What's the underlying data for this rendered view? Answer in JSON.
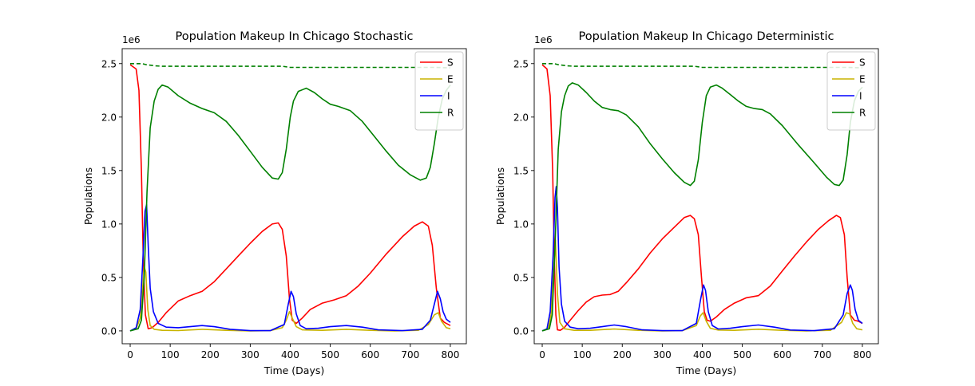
{
  "chart_data": [
    {
      "type": "line",
      "title": "Population Makeup In Chicago Stochastic",
      "xlabel": "Time (Days)",
      "ylabel": "Populations",
      "scale_label": "1e6",
      "xlim": [
        -20,
        840
      ],
      "ylim": [
        -120000,
        2640000
      ],
      "xticks": [
        0,
        100,
        200,
        300,
        400,
        500,
        600,
        700,
        800
      ],
      "yticks": [
        0,
        500000,
        1000000,
        1500000,
        2000000,
        2500000
      ],
      "ytick_labels": [
        "0.0",
        "0.5",
        "1.0",
        "1.5",
        "2.0",
        "2.5"
      ],
      "legend": "top-right",
      "series": [
        {
          "name": "S",
          "color": "#ff0000",
          "dashed": false,
          "x": [
            0,
            15,
            22,
            28,
            33,
            38,
            45,
            55,
            70,
            90,
            120,
            150,
            180,
            210,
            240,
            270,
            300,
            330,
            355,
            370,
            380,
            390,
            398,
            405,
            415,
            430,
            450,
            480,
            510,
            540,
            570,
            600,
            640,
            680,
            710,
            730,
            745,
            755,
            765,
            775,
            785,
            800
          ],
          "y": [
            2490000,
            2450000,
            2250000,
            1500000,
            600000,
            150000,
            20000,
            30000,
            80000,
            170000,
            280000,
            330000,
            370000,
            460000,
            580000,
            700000,
            820000,
            930000,
            1000000,
            1010000,
            950000,
            700000,
            300000,
            100000,
            70000,
            120000,
            200000,
            260000,
            290000,
            330000,
            420000,
            540000,
            720000,
            880000,
            980000,
            1020000,
            980000,
            800000,
            400000,
            120000,
            80000,
            50000
          ]
        },
        {
          "name": "E",
          "color": "#c8b400",
          "dashed": false,
          "x": [
            0,
            15,
            25,
            30,
            35,
            39,
            44,
            50,
            60,
            80,
            120,
            180,
            240,
            300,
            350,
            380,
            390,
            398,
            405,
            415,
            430,
            480,
            540,
            600,
            660,
            720,
            745,
            760,
            770,
            778,
            790,
            800
          ],
          "y": [
            0,
            20000,
            120000,
            350000,
            600000,
            550000,
            200000,
            50000,
            15000,
            5000,
            3000,
            15000,
            5000,
            0,
            2000,
            30000,
            100000,
            180000,
            120000,
            40000,
            10000,
            5000,
            15000,
            5000,
            0,
            5000,
            60000,
            150000,
            170000,
            90000,
            30000,
            20000
          ]
        },
        {
          "name": "I",
          "color": "#0000ff",
          "dashed": false,
          "x": [
            0,
            15,
            25,
            32,
            37,
            41,
            45,
            50,
            58,
            70,
            90,
            120,
            150,
            180,
            210,
            250,
            300,
            350,
            385,
            395,
            402,
            408,
            415,
            425,
            440,
            470,
            500,
            540,
            580,
            620,
            680,
            730,
            750,
            760,
            768,
            775,
            782,
            790,
            800
          ],
          "y": [
            0,
            30000,
            200000,
            700000,
            1120000,
            1180000,
            800000,
            400000,
            180000,
            70000,
            35000,
            30000,
            40000,
            50000,
            40000,
            15000,
            2000,
            2000,
            60000,
            250000,
            370000,
            320000,
            160000,
            50000,
            20000,
            25000,
            40000,
            50000,
            35000,
            10000,
            2000,
            15000,
            100000,
            250000,
            370000,
            300000,
            180000,
            110000,
            80000
          ]
        },
        {
          "name": "R",
          "color": "#008000",
          "dashed": false,
          "x": [
            0,
            20,
            28,
            35,
            42,
            50,
            60,
            70,
            80,
            95,
            120,
            150,
            180,
            210,
            240,
            270,
            300,
            330,
            355,
            370,
            380,
            390,
            400,
            408,
            420,
            440,
            460,
            480,
            500,
            520,
            550,
            580,
            610,
            640,
            670,
            700,
            725,
            740,
            750,
            760,
            770,
            780,
            790,
            800
          ],
          "y": [
            0,
            20000,
            100000,
            500000,
            1300000,
            1900000,
            2150000,
            2260000,
            2300000,
            2280000,
            2200000,
            2130000,
            2080000,
            2040000,
            1960000,
            1830000,
            1680000,
            1530000,
            1430000,
            1420000,
            1480000,
            1700000,
            2000000,
            2150000,
            2240000,
            2270000,
            2230000,
            2170000,
            2120000,
            2100000,
            2060000,
            1960000,
            1820000,
            1680000,
            1550000,
            1460000,
            1410000,
            1430000,
            1530000,
            1750000,
            2000000,
            2170000,
            2250000,
            2300000
          ]
        },
        {
          "name": "",
          "color": "#008000",
          "dashed": true,
          "x": [
            0,
            30,
            40,
            60,
            80,
            200,
            300,
            380,
            400,
            600,
            760,
            800
          ],
          "y": [
            2500000,
            2500000,
            2490000,
            2480000,
            2475000,
            2475000,
            2475000,
            2475000,
            2465000,
            2465000,
            2465000,
            2460000
          ]
        }
      ]
    },
    {
      "type": "line",
      "title": "Population Makeup In Chicago Deterministic",
      "xlabel": "Time (Days)",
      "ylabel": "Populations",
      "scale_label": "1e6",
      "xlim": [
        -20,
        840
      ],
      "ylim": [
        -120000,
        2640000
      ],
      "xticks": [
        0,
        100,
        200,
        300,
        400,
        500,
        600,
        700,
        800
      ],
      "yticks": [
        0,
        500000,
        1000000,
        1500000,
        2000000,
        2500000
      ],
      "ytick_labels": [
        "0.0",
        "0.5",
        "1.0",
        "1.5",
        "2.0",
        "2.5"
      ],
      "legend": "top-right",
      "series": [
        {
          "name": "S",
          "color": "#ff0000",
          "dashed": false,
          "x": [
            0,
            12,
            20,
            26,
            30,
            34,
            38,
            45,
            55,
            70,
            90,
            110,
            130,
            150,
            170,
            190,
            210,
            240,
            270,
            300,
            330,
            355,
            370,
            380,
            390,
            398,
            405,
            412,
            420,
            435,
            455,
            480,
            510,
            540,
            570,
            600,
            630,
            660,
            690,
            715,
            735,
            745,
            755,
            762,
            770,
            780,
            790,
            800
          ],
          "y": [
            2490000,
            2450000,
            2200000,
            1500000,
            700000,
            150000,
            10000,
            5000,
            30000,
            100000,
            190000,
            270000,
            320000,
            335000,
            340000,
            370000,
            450000,
            580000,
            730000,
            860000,
            970000,
            1060000,
            1080000,
            1050000,
            900000,
            500000,
            180000,
            100000,
            90000,
            130000,
            200000,
            260000,
            310000,
            330000,
            420000,
            560000,
            700000,
            830000,
            950000,
            1030000,
            1080000,
            1060000,
            900000,
            500000,
            150000,
            100000,
            90000,
            70000
          ]
        },
        {
          "name": "E",
          "color": "#c8b400",
          "dashed": false,
          "x": [
            0,
            15,
            22,
            28,
            33,
            38,
            44,
            55,
            80,
            120,
            180,
            240,
            300,
            350,
            385,
            395,
            402,
            410,
            420,
            440,
            480,
            540,
            600,
            660,
            720,
            748,
            760,
            768,
            776,
            786,
            800
          ],
          "y": [
            0,
            20000,
            150000,
            550000,
            850000,
            350000,
            80000,
            20000,
            5000,
            5000,
            18000,
            5000,
            0,
            2000,
            50000,
            140000,
            170000,
            90000,
            25000,
            8000,
            5000,
            16000,
            5000,
            0,
            5000,
            80000,
            170000,
            160000,
            70000,
            20000,
            10000
          ]
        },
        {
          "name": "I",
          "color": "#0000ff",
          "dashed": false,
          "x": [
            0,
            12,
            20,
            27,
            32,
            35,
            38,
            42,
            48,
            56,
            70,
            90,
            120,
            150,
            180,
            210,
            250,
            300,
            350,
            385,
            396,
            403,
            408,
            415,
            425,
            440,
            470,
            500,
            540,
            580,
            620,
            680,
            730,
            752,
            762,
            770,
            775,
            782,
            790,
            800
          ],
          "y": [
            0,
            20000,
            180000,
            700000,
            1250000,
            1350000,
            1150000,
            600000,
            250000,
            90000,
            35000,
            20000,
            25000,
            40000,
            55000,
            40000,
            10000,
            2000,
            2000,
            70000,
            300000,
            430000,
            380000,
            180000,
            50000,
            18000,
            25000,
            40000,
            55000,
            35000,
            8000,
            2000,
            20000,
            150000,
            350000,
            430000,
            380000,
            200000,
            100000,
            70000
          ]
        },
        {
          "name": "R",
          "color": "#008000",
          "dashed": false,
          "x": [
            0,
            18,
            25,
            32,
            40,
            48,
            56,
            65,
            75,
            90,
            110,
            130,
            150,
            170,
            190,
            210,
            240,
            270,
            300,
            330,
            355,
            370,
            380,
            390,
            400,
            410,
            420,
            435,
            450,
            470,
            490,
            510,
            530,
            550,
            570,
            600,
            640,
            680,
            710,
            730,
            742,
            752,
            762,
            770,
            780,
            790,
            800
          ],
          "y": [
            0,
            20000,
            150000,
            800000,
            1700000,
            2050000,
            2200000,
            2290000,
            2320000,
            2300000,
            2230000,
            2150000,
            2090000,
            2070000,
            2060000,
            2020000,
            1910000,
            1750000,
            1610000,
            1480000,
            1390000,
            1360000,
            1400000,
            1600000,
            1950000,
            2200000,
            2280000,
            2300000,
            2270000,
            2210000,
            2150000,
            2100000,
            2080000,
            2070000,
            2030000,
            1920000,
            1740000,
            1570000,
            1440000,
            1370000,
            1360000,
            1410000,
            1650000,
            1950000,
            2150000,
            2240000,
            2280000
          ]
        },
        {
          "name": "",
          "color": "#008000",
          "dashed": true,
          "x": [
            0,
            30,
            40,
            60,
            80,
            200,
            300,
            380,
            400,
            600,
            760,
            800
          ],
          "y": [
            2500000,
            2500000,
            2490000,
            2480000,
            2475000,
            2475000,
            2475000,
            2475000,
            2465000,
            2465000,
            2465000,
            2460000
          ]
        }
      ]
    }
  ]
}
